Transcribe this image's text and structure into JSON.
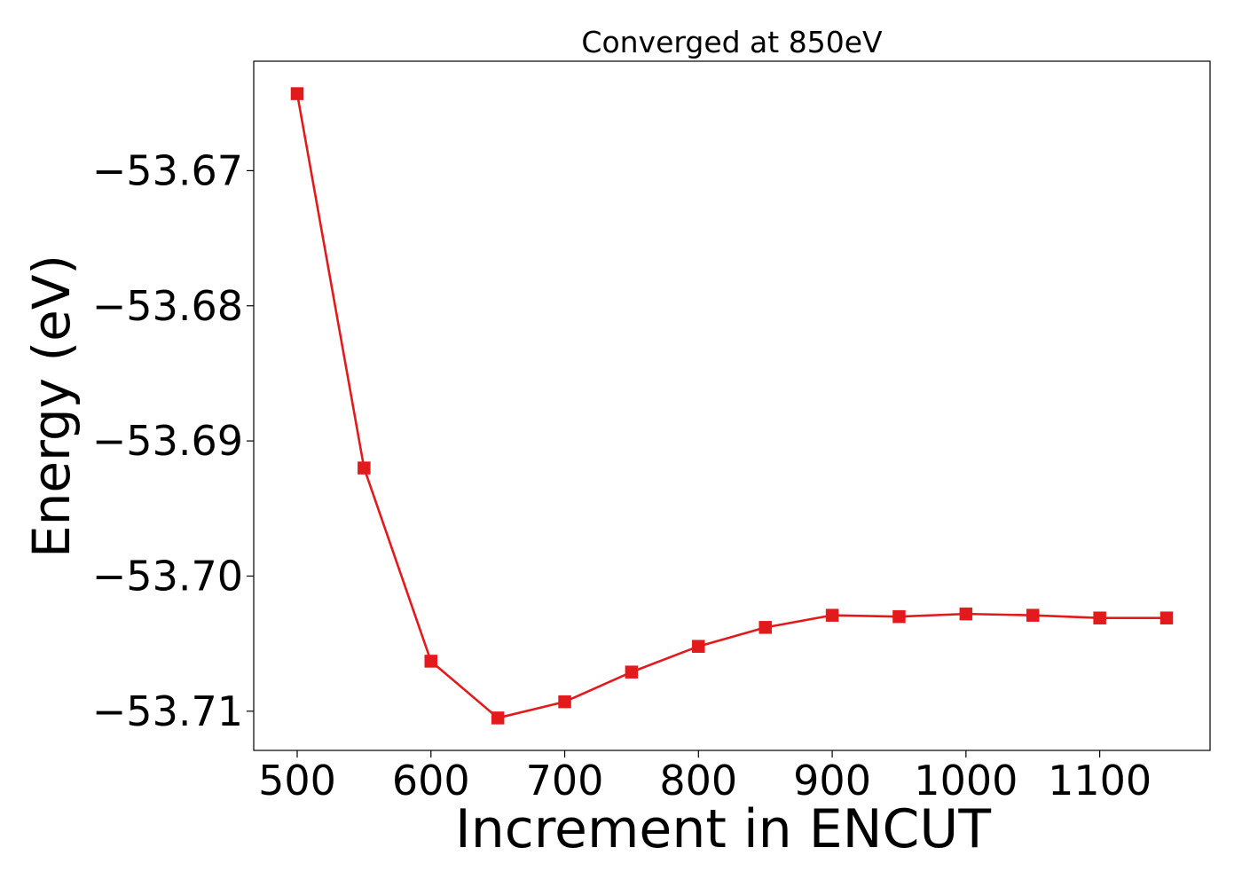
{
  "chart_data": {
    "type": "line",
    "title": "Converged at 850eV",
    "xlabel": "Increment in ENCUT",
    "ylabel": "Energy (eV)",
    "xlim": [
      467.5,
      1182.5
    ],
    "ylim": [
      -53.7129,
      -53.6619
    ],
    "xticks": [
      500,
      600,
      700,
      800,
      900,
      1000,
      1100
    ],
    "xtick_labels": [
      "500",
      "600",
      "700",
      "800",
      "900",
      "1000",
      "1100"
    ],
    "yticks": [
      -53.67,
      -53.68,
      -53.69,
      -53.7,
      -53.71
    ],
    "ytick_labels": [
      "−53.67",
      "−53.68",
      "−53.69",
      "−53.70",
      "−53.71"
    ],
    "grid": false,
    "legend": "none",
    "series": [
      {
        "color": "#e31a1c",
        "marker": "square",
        "x": [
          500,
          550,
          600,
          650,
          700,
          750,
          800,
          850,
          900,
          950,
          1000,
          1050,
          1100,
          1150
        ],
        "y": [
          -53.6643,
          -53.692,
          -53.7063,
          -53.7105,
          -53.7093,
          -53.7071,
          -53.7052,
          -53.7038,
          -53.7029,
          -53.703,
          -53.7028,
          -53.7029,
          -53.7031,
          -53.7031
        ]
      }
    ]
  }
}
